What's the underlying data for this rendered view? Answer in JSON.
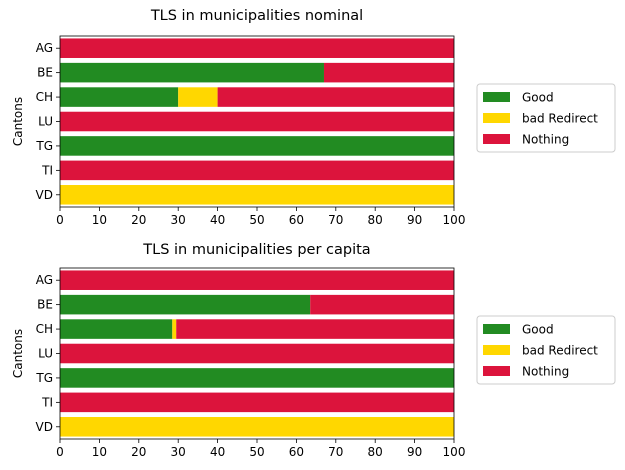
{
  "colors": {
    "good": "#228B22",
    "bad_redirect": "#FFD700",
    "nothing": "#DC143C"
  },
  "chart_data": [
    {
      "type": "bar",
      "orientation": "horizontal",
      "stacked": true,
      "title": "TLS in municipalities nominal",
      "ylabel": "Cantons",
      "xlabel": "",
      "xlim": [
        0,
        100
      ],
      "xticks": [
        "0",
        "10",
        "20",
        "30",
        "40",
        "50",
        "60",
        "70",
        "80",
        "90",
        "100"
      ],
      "categories": [
        "AG",
        "BE",
        "CH",
        "LU",
        "TG",
        "TI",
        "VD"
      ],
      "series": [
        {
          "name": "Good",
          "color": "#228B22",
          "values": [
            0,
            67,
            30,
            0,
            100,
            0,
            0
          ]
        },
        {
          "name": "bad Redirect",
          "color": "#FFD700",
          "values": [
            0,
            0,
            10,
            0,
            0,
            0,
            100
          ]
        },
        {
          "name": "Nothing",
          "color": "#DC143C",
          "values": [
            100,
            33,
            60,
            100,
            0,
            100,
            0
          ]
        }
      ],
      "legend": "right",
      "grid": false
    },
    {
      "type": "bar",
      "orientation": "horizontal",
      "stacked": true,
      "title": "TLS in municipalities per capita",
      "ylabel": "Cantons",
      "xlabel": "",
      "xlim": [
        0,
        100
      ],
      "xticks": [
        "0",
        "10",
        "20",
        "30",
        "40",
        "50",
        "60",
        "70",
        "80",
        "90",
        "100"
      ],
      "categories": [
        "AG",
        "BE",
        "CH",
        "LU",
        "TG",
        "TI",
        "VD"
      ],
      "series": [
        {
          "name": "Good",
          "color": "#228B22",
          "values": [
            0,
            63.5,
            28.5,
            0,
            100,
            0,
            0
          ]
        },
        {
          "name": "bad Redirect",
          "color": "#FFD700",
          "values": [
            0,
            0,
            1,
            0,
            0,
            0,
            100
          ]
        },
        {
          "name": "Nothing",
          "color": "#DC143C",
          "values": [
            100,
            36.5,
            70.5,
            100,
            0,
            100,
            0
          ]
        }
      ],
      "legend": "right",
      "grid": false
    }
  ]
}
